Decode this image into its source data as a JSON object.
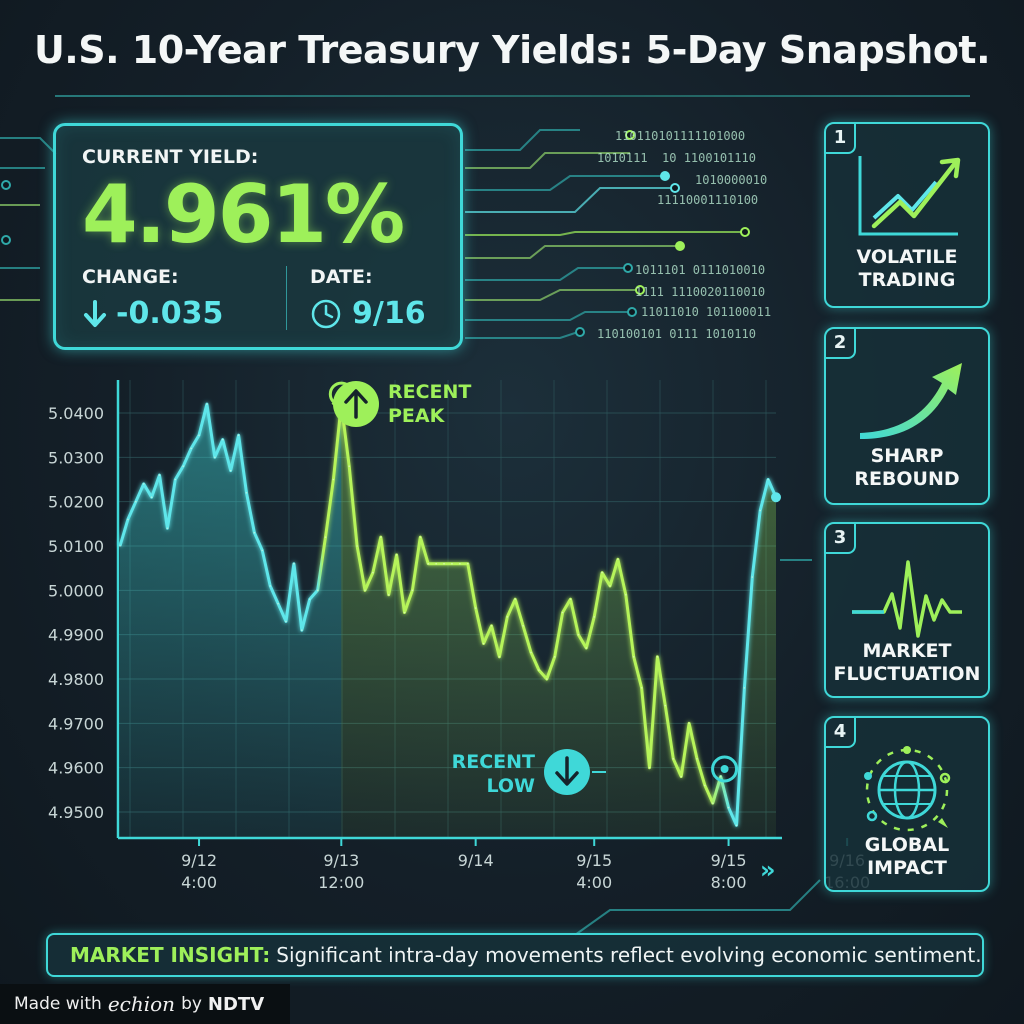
{
  "title": "U.S. 10-Year Treasury Yields: 5-Day Snapshot.",
  "summary": {
    "current_yield_label": "CURRENT YIELD:",
    "current_yield_value": "4.961%",
    "change_label": "CHANGE:",
    "change_value": "-0.035",
    "change_icon": "arrow-down-icon",
    "date_label": "DATE:",
    "date_value": "9/16",
    "date_icon": "clock-icon"
  },
  "binary_lines": [
    "110110101111101000",
    "1010111  10 1100101110",
    "1010000010",
    "11110001110100",
    "1011101 0111010010",
    "1111 1110020110010",
    "11011010 101100011",
    "110100101 0111 1010110"
  ],
  "annotations": {
    "peak_label_line1": "RECENT",
    "peak_label_line2": "PEAK",
    "low_label_line1": "RECENT",
    "low_label_line2": "LOW"
  },
  "side_cards": [
    {
      "number": "1",
      "label_line1": "VOLATILE",
      "label_line2": "TRADING",
      "icon": "rising-zigzag-arrow-icon"
    },
    {
      "number": "2",
      "label_line1": "SHARP",
      "label_line2": "REBOUND",
      "icon": "curved-up-arrow-icon"
    },
    {
      "number": "3",
      "label_line1": "MARKET",
      "label_line2": "FLUCTUATION",
      "icon": "pulse-wave-icon"
    },
    {
      "number": "4",
      "label_line1": "GLOBAL",
      "label_line2": "IMPACT",
      "icon": "globe-network-icon"
    }
  ],
  "insight": {
    "lead": "MARKET INSIGHT:",
    "text": "Significant intra-day movements reflect evolving economic sentiment."
  },
  "footer": {
    "prefix": "Made with",
    "brand": "echion",
    "by": "by",
    "brand2": "NDTV"
  },
  "colors": {
    "teal": "#3fd8d8",
    "lime": "#9ef05a",
    "background": "#141f28"
  },
  "chart_data": {
    "type": "line",
    "title": "",
    "xlabel": "",
    "ylabel": "",
    "ylim": [
      4.945,
      5.05
    ],
    "yticks": [
      "5.0400",
      "5.0300",
      "5.0200",
      "5.0100",
      "5.0000",
      "4.9900",
      "4.9800",
      "4.9700",
      "4.9600",
      "4.9500"
    ],
    "ytick_values": [
      5.04,
      5.03,
      5.02,
      5.01,
      5.0,
      4.99,
      4.98,
      4.97,
      4.96,
      4.95
    ],
    "xticks": [
      {
        "line1": "9/12",
        "line2": "4:00",
        "index": 10
      },
      {
        "line1": "9/13",
        "line2": "12:00",
        "index": 28
      },
      {
        "line1": "9/14",
        "line2": "",
        "index": 45
      },
      {
        "line1": "9/15",
        "line2": "4:00",
        "index": 60
      },
      {
        "line1": "9/15",
        "line2": "8:00",
        "index": 77
      },
      {
        "line1": "9/16",
        "line2": "16:00",
        "index": 92
      }
    ],
    "xtick_chevron": "»",
    "peak_index": 28,
    "low_index": 77,
    "series": [
      {
        "values": [
          5.01,
          5.016,
          5.02,
          5.024,
          5.021,
          5.026,
          5.014,
          5.025,
          5.028,
          5.032,
          5.035,
          5.042,
          5.03,
          5.034,
          5.027,
          5.035,
          5.022,
          5.013,
          5.009,
          5.001,
          4.997,
          4.993,
          5.006,
          4.991,
          4.998,
          5.0,
          5.012,
          5.025,
          5.042,
          5.028,
          5.01,
          5.0,
          5.004,
          5.012,
          4.999,
          5.008,
          4.995,
          5.0,
          5.012,
          5.006,
          5.006,
          5.006,
          5.006,
          5.006,
          5.006,
          4.996,
          4.988,
          4.992,
          4.985,
          4.994,
          4.998,
          4.992,
          4.986,
          4.982,
          4.98,
          4.985,
          4.995,
          4.998,
          4.99,
          4.987,
          4.994,
          5.004,
          5.001,
          5.007,
          4.999,
          4.985,
          4.978,
          4.96,
          4.985,
          4.974,
          4.962,
          4.958,
          4.97,
          4.962,
          4.956,
          4.952,
          4.958,
          4.951,
          4.947,
          4.978,
          5.003,
          5.018,
          5.025,
          5.021
        ]
      }
    ]
  }
}
